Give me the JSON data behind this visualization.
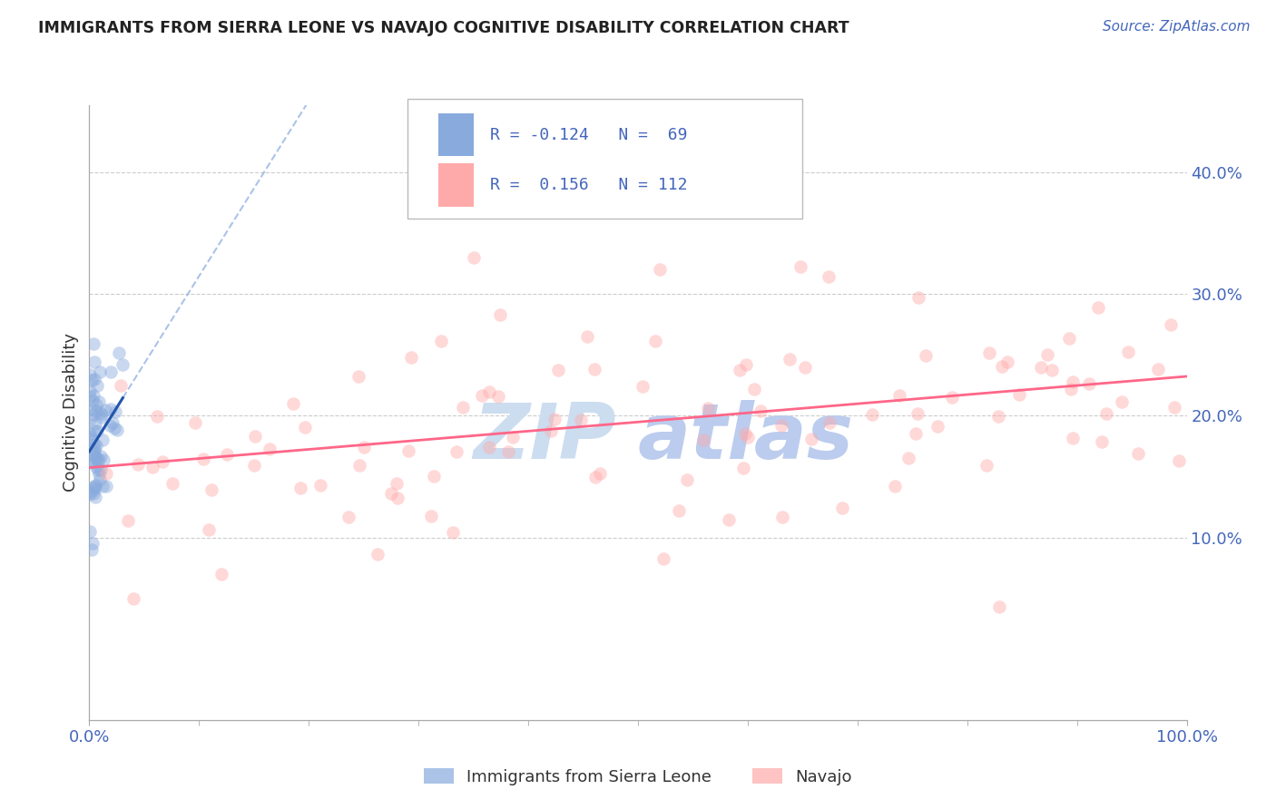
{
  "title": "IMMIGRANTS FROM SIERRA LEONE VS NAVAJO COGNITIVE DISABILITY CORRELATION CHART",
  "source": "Source: ZipAtlas.com",
  "ylabel": "Cognitive Disability",
  "yticks": [
    0.1,
    0.2,
    0.3,
    0.4
  ],
  "ytick_labels": [
    "10.0%",
    "20.0%",
    "30.0%",
    "40.0%"
  ],
  "xtick_labels": [
    "0.0%",
    "100.0%"
  ],
  "xlim": [
    0.0,
    1.0
  ],
  "ylim": [
    -0.05,
    0.455
  ],
  "legend_label1": "Immigrants from Sierra Leone",
  "legend_label2": "Navajo",
  "color_blue": "#88AADD",
  "color_pink": "#FFAAAA",
  "color_blue_line": "#2255AA",
  "color_pink_line": "#FF6688",
  "color_axis": "#4466BB",
  "background_color": "#FFFFFF",
  "title_color": "#222222",
  "watermark_color": "#CCDDF0",
  "grid_color": "#CCCCCC"
}
